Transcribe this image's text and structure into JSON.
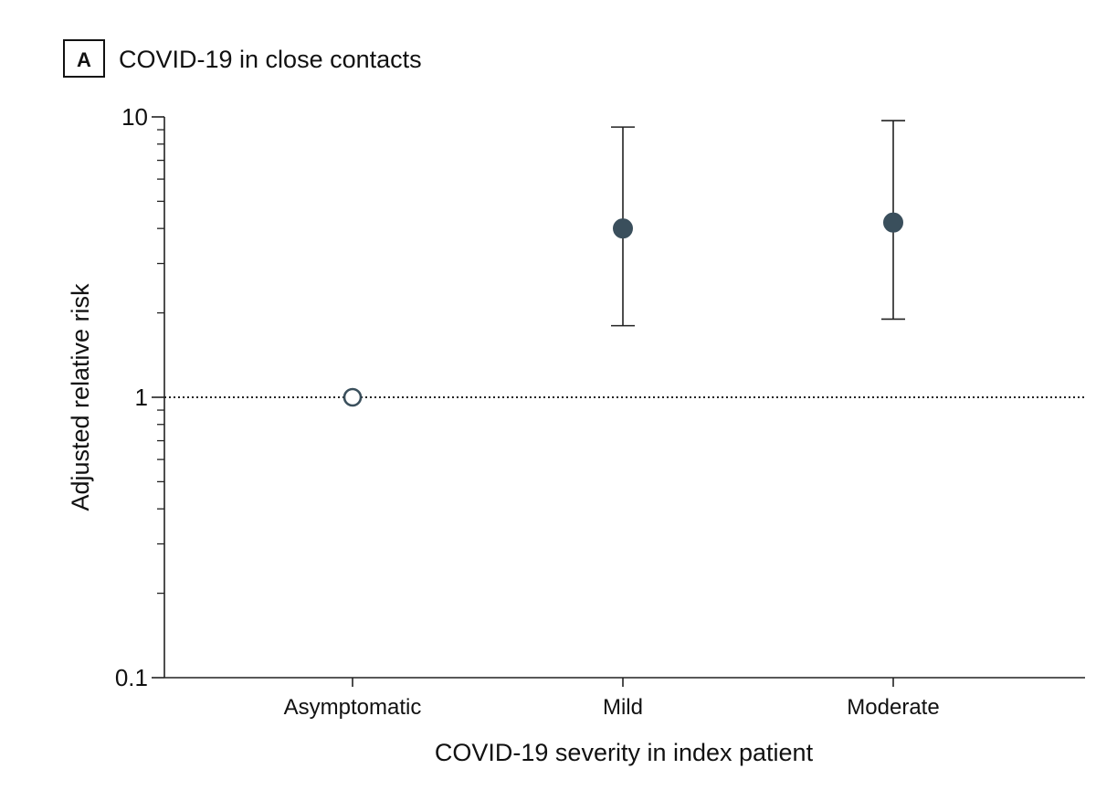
{
  "panel": {
    "letter": "A",
    "title": "COVID-19 in close contacts"
  },
  "colors": {
    "text": "#111111",
    "axis": "#222222",
    "marker_fill": "#3a4f5c",
    "marker_open_fill": "#ffffff",
    "reference_line": "#222222"
  },
  "chart_data": {
    "type": "scatter",
    "title": "COVID-19 in close contacts",
    "xlabel": "COVID-19 severity in index patient",
    "ylabel": "Adjusted relative risk",
    "y_scale": "log",
    "ylim": [
      0.1,
      10
    ],
    "y_ticks": [
      {
        "value": 0.1,
        "label": "0.1"
      },
      {
        "value": 1,
        "label": "1"
      },
      {
        "value": 10,
        "label": "10"
      }
    ],
    "y_minor_ticks": [
      0.2,
      0.3,
      0.4,
      0.5,
      0.6,
      0.7,
      0.8,
      0.9,
      2,
      3,
      4,
      5,
      6,
      7,
      8,
      9
    ],
    "reference_line": {
      "value": 1,
      "style": "dotted"
    },
    "categories": [
      "Asymptomatic",
      "Mild",
      "Moderate"
    ],
    "points": [
      {
        "category": "Asymptomatic",
        "value": 1.0,
        "ci_low": null,
        "ci_high": null,
        "marker": "open",
        "marker_name": "asymptomatic-point"
      },
      {
        "category": "Mild",
        "value": 4.0,
        "ci_low": 1.8,
        "ci_high": 9.2,
        "marker": "filled",
        "marker_name": "mild-point"
      },
      {
        "category": "Moderate",
        "value": 4.2,
        "ci_low": 1.9,
        "ci_high": 9.7,
        "marker": "filled",
        "marker_name": "moderate-point"
      }
    ],
    "grid": false,
    "legend": "none"
  }
}
